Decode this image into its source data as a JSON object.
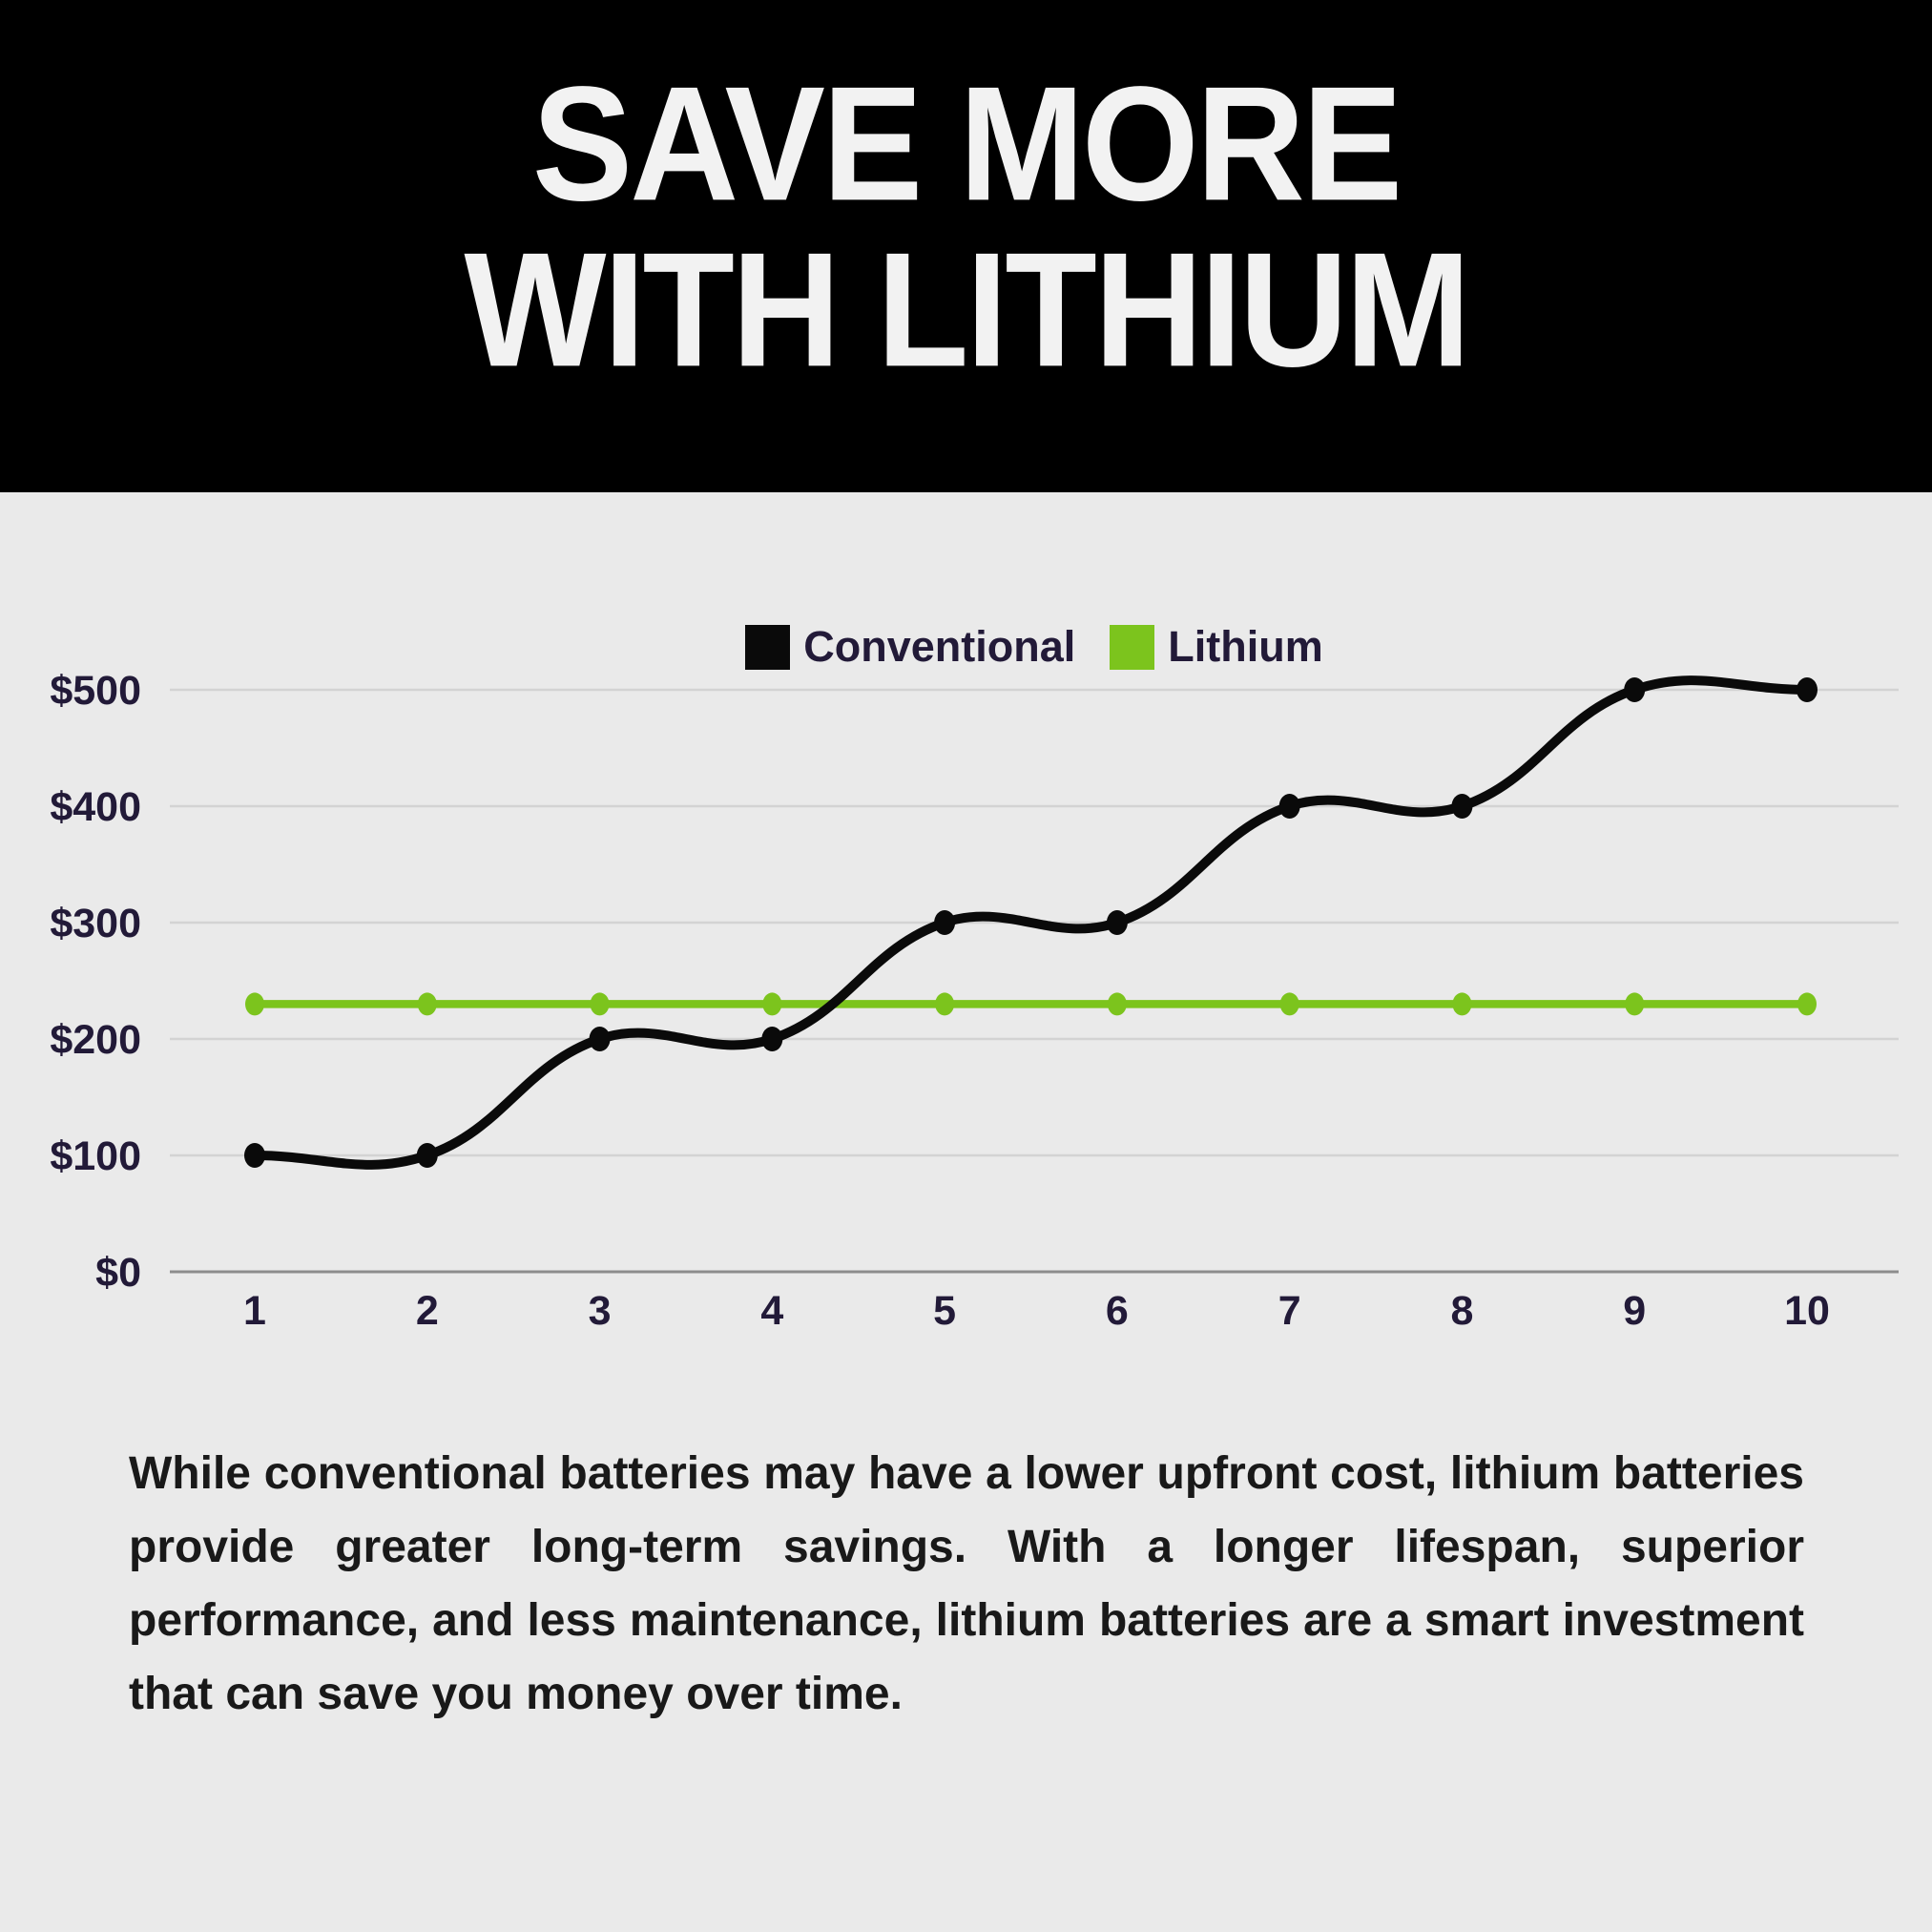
{
  "header": {
    "title_line1": "SAVE MORE",
    "title_line2": "WITH LITHIUM"
  },
  "chart_data": {
    "type": "line",
    "title": "",
    "xlabel": "",
    "ylabel": "",
    "categories": [
      "1",
      "2",
      "3",
      "4",
      "5",
      "6",
      "7",
      "8",
      "9",
      "10"
    ],
    "series": [
      {
        "name": "Conventional",
        "color": "#0a0a0a",
        "values": [
          100,
          100,
          200,
          200,
          300,
          300,
          400,
          400,
          500,
          500
        ]
      },
      {
        "name": "Lithium",
        "color": "#7cc41d",
        "values": [
          230,
          230,
          230,
          230,
          230,
          230,
          230,
          230,
          230,
          230
        ]
      }
    ],
    "ylim": [
      0,
      500
    ],
    "y_ticks": [
      {
        "value": 0,
        "label": "$0"
      },
      {
        "value": 100,
        "label": "$100"
      },
      {
        "value": 200,
        "label": "$200"
      },
      {
        "value": 300,
        "label": "$300"
      },
      {
        "value": 400,
        "label": "$400"
      },
      {
        "value": 500,
        "label": "$500"
      }
    ],
    "grid": true,
    "legend_position": "top",
    "line_style": "smooth",
    "grid_color": "#d3d3d3",
    "axis_color": "#8d8d8d"
  },
  "paragraph": "While conventional batteries may have a lower upfront cost, lithium batteries provide greater long-term savings. With a longer lifespan, superior performance, and less maintenance, lithium batteries are a smart investment that can save you money over time.",
  "colors": {
    "background": "#eaeaea",
    "banner": "#000000",
    "title_text": "#f2f2f2",
    "label_text": "#221a38",
    "body_text": "#191919"
  }
}
